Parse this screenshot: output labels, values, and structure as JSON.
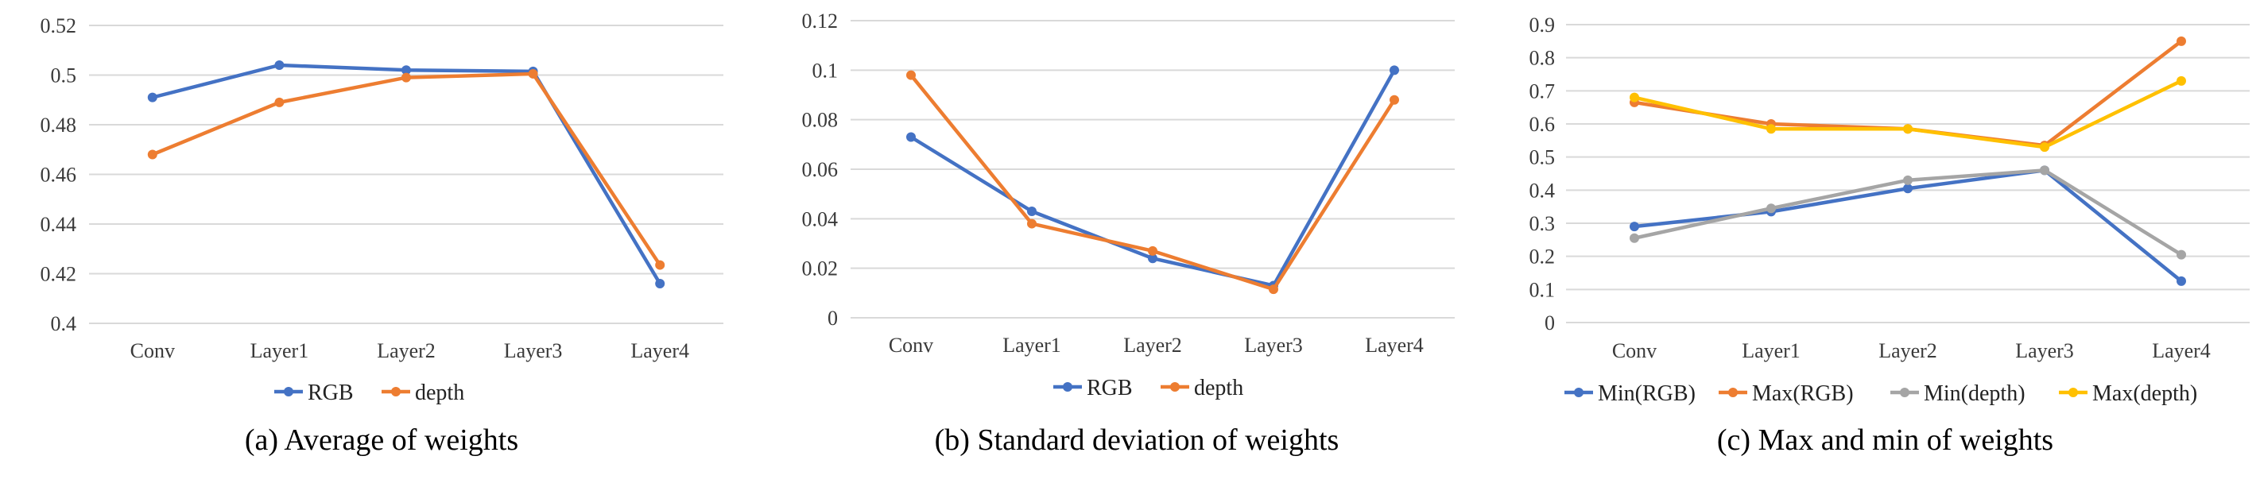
{
  "chart_data": [
    {
      "type": "line",
      "caption": "(a) Average of weights",
      "categories": [
        "Conv",
        "Layer1",
        "Layer2",
        "Layer3",
        "Layer4"
      ],
      "ylim": [
        0.4,
        0.52
      ],
      "yticks": [
        "0.4",
        "0.42",
        "0.44",
        "0.46",
        "0.48",
        "0.5",
        "0.52"
      ],
      "grid": true,
      "legend_position": "bottom",
      "series": [
        {
          "name": "RGB",
          "color": "#4472C4",
          "values": [
            0.491,
            0.504,
            0.502,
            0.5015,
            0.416
          ]
        },
        {
          "name": "depth",
          "color": "#ED7D31",
          "values": [
            0.468,
            0.489,
            0.499,
            0.5005,
            0.4235
          ]
        }
      ]
    },
    {
      "type": "line",
      "caption": "(b) Standard deviation of weights",
      "categories": [
        "Conv",
        "Layer1",
        "Layer2",
        "Layer3",
        "Layer4"
      ],
      "ylim": [
        0,
        0.12
      ],
      "yticks": [
        "0",
        "0.02",
        "0.04",
        "0.06",
        "0.08",
        "0.1",
        "0.12"
      ],
      "grid": true,
      "legend_position": "bottom",
      "series": [
        {
          "name": "RGB",
          "color": "#4472C4",
          "values": [
            0.073,
            0.043,
            0.024,
            0.013,
            0.1
          ]
        },
        {
          "name": "depth",
          "color": "#ED7D31",
          "values": [
            0.098,
            0.038,
            0.027,
            0.0115,
            0.088
          ]
        }
      ]
    },
    {
      "type": "line",
      "caption": "(c) Max and min of weights",
      "categories": [
        "Conv",
        "Layer1",
        "Layer2",
        "Layer3",
        "Layer4"
      ],
      "ylim": [
        0,
        0.9
      ],
      "yticks": [
        "0",
        "0.1",
        "0.2",
        "0.3",
        "0.4",
        "0.5",
        "0.6",
        "0.7",
        "0.8",
        "0.9"
      ],
      "grid": true,
      "legend_position": "bottom",
      "series": [
        {
          "name": "Min(RGB)",
          "color": "#4472C4",
          "values": [
            0.29,
            0.335,
            0.405,
            0.46,
            0.125
          ]
        },
        {
          "name": "Max(RGB)",
          "color": "#ED7D31",
          "values": [
            0.665,
            0.6,
            0.585,
            0.535,
            0.85
          ]
        },
        {
          "name": "Min(depth)",
          "color": "#A5A5A5",
          "values": [
            0.255,
            0.345,
            0.43,
            0.46,
            0.205
          ]
        },
        {
          "name": "Max(depth)",
          "color": "#FFC000",
          "values": [
            0.68,
            0.585,
            0.585,
            0.53,
            0.73
          ]
        }
      ]
    }
  ]
}
